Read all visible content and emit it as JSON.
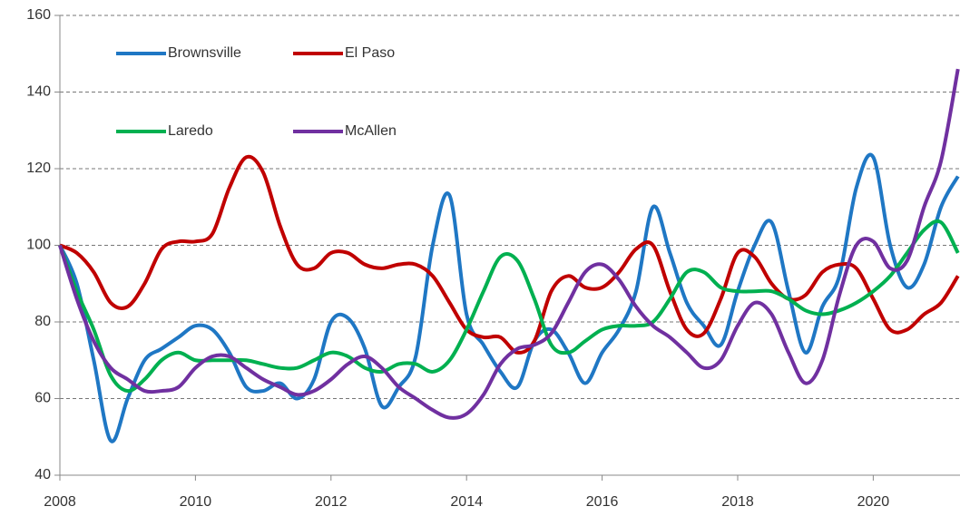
{
  "chart_data": {
    "type": "line",
    "x": [
      2008,
      2008.25,
      2008.5,
      2008.75,
      2009,
      2009.25,
      2009.5,
      2009.75,
      2010,
      2010.25,
      2010.5,
      2010.75,
      2011,
      2011.25,
      2011.5,
      2011.75,
      2012,
      2012.25,
      2012.5,
      2012.75,
      2013,
      2013.25,
      2013.5,
      2013.75,
      2014,
      2014.25,
      2014.5,
      2014.75,
      2015,
      2015.25,
      2015.5,
      2015.75,
      2016,
      2016.25,
      2016.5,
      2016.75,
      2017,
      2017.25,
      2017.5,
      2017.75,
      2018,
      2018.25,
      2018.5,
      2018.75,
      2019,
      2019.25,
      2019.5,
      2019.75,
      2020,
      2020.25,
      2020.5,
      2020.75,
      2021,
      2021.25
    ],
    "series": [
      {
        "name": "Brownsville",
        "color": "#1f77c4",
        "values": [
          100,
          90,
          70,
          49,
          60,
          70,
          73,
          76,
          79,
          78,
          72,
          63,
          62,
          64,
          60,
          65,
          80,
          81,
          73,
          58,
          63,
          71,
          100,
          113,
          82,
          74,
          67,
          63,
          75,
          78,
          72,
          64,
          72,
          78,
          88,
          110,
          98,
          85,
          79,
          74,
          88,
          100,
          106,
          88,
          72,
          84,
          92,
          115,
          123,
          100,
          89,
          95,
          110,
          118
        ]
      },
      {
        "name": "El Paso",
        "color": "#c00000",
        "values": [
          100,
          98,
          93,
          85,
          84,
          90,
          99,
          101,
          101,
          103,
          115,
          123,
          119,
          105,
          95,
          94,
          98,
          98,
          95,
          94,
          95,
          95,
          92,
          85,
          78,
          76,
          76,
          72,
          75,
          88,
          92,
          89,
          89,
          93,
          99,
          100,
          88,
          78,
          77,
          86,
          98,
          97,
          90,
          86,
          87,
          93,
          95,
          94,
          86,
          78,
          78,
          82,
          85,
          92
        ]
      },
      {
        "name": "Laredo",
        "color": "#00b050",
        "values": [
          100,
          88,
          78,
          66,
          62,
          65,
          70,
          72,
          70,
          70,
          70,
          70,
          69,
          68,
          68,
          70,
          72,
          71,
          68,
          67,
          69,
          69,
          67,
          70,
          78,
          88,
          97,
          96,
          86,
          74,
          72,
          75,
          78,
          79,
          79,
          80,
          86,
          93,
          93,
          89,
          88,
          88,
          88,
          86,
          83,
          82,
          83,
          85,
          88,
          92,
          98,
          104,
          106,
          98
        ]
      },
      {
        "name": "McAllen",
        "color": "#7030a0",
        "values": [
          100,
          86,
          75,
          68,
          65,
          62,
          62,
          63,
          68,
          71,
          71,
          68,
          65,
          63,
          61,
          62,
          65,
          69,
          71,
          68,
          63,
          60,
          57,
          55,
          56,
          61,
          69,
          73,
          74,
          77,
          85,
          93,
          95,
          91,
          84,
          79,
          76,
          72,
          68,
          70,
          79,
          85,
          82,
          72,
          64,
          70,
          87,
          100,
          101,
          94,
          96,
          110,
          122,
          146
        ]
      }
    ],
    "xlim": [
      2008,
      2021.28
    ],
    "xticks": [
      2008,
      2010,
      2012,
      2014,
      2016,
      2018,
      2020
    ],
    "ylim": [
      40,
      160
    ],
    "yticks": [
      40,
      60,
      80,
      100,
      120,
      140,
      160
    ],
    "grid": true,
    "legend": "top-left"
  }
}
